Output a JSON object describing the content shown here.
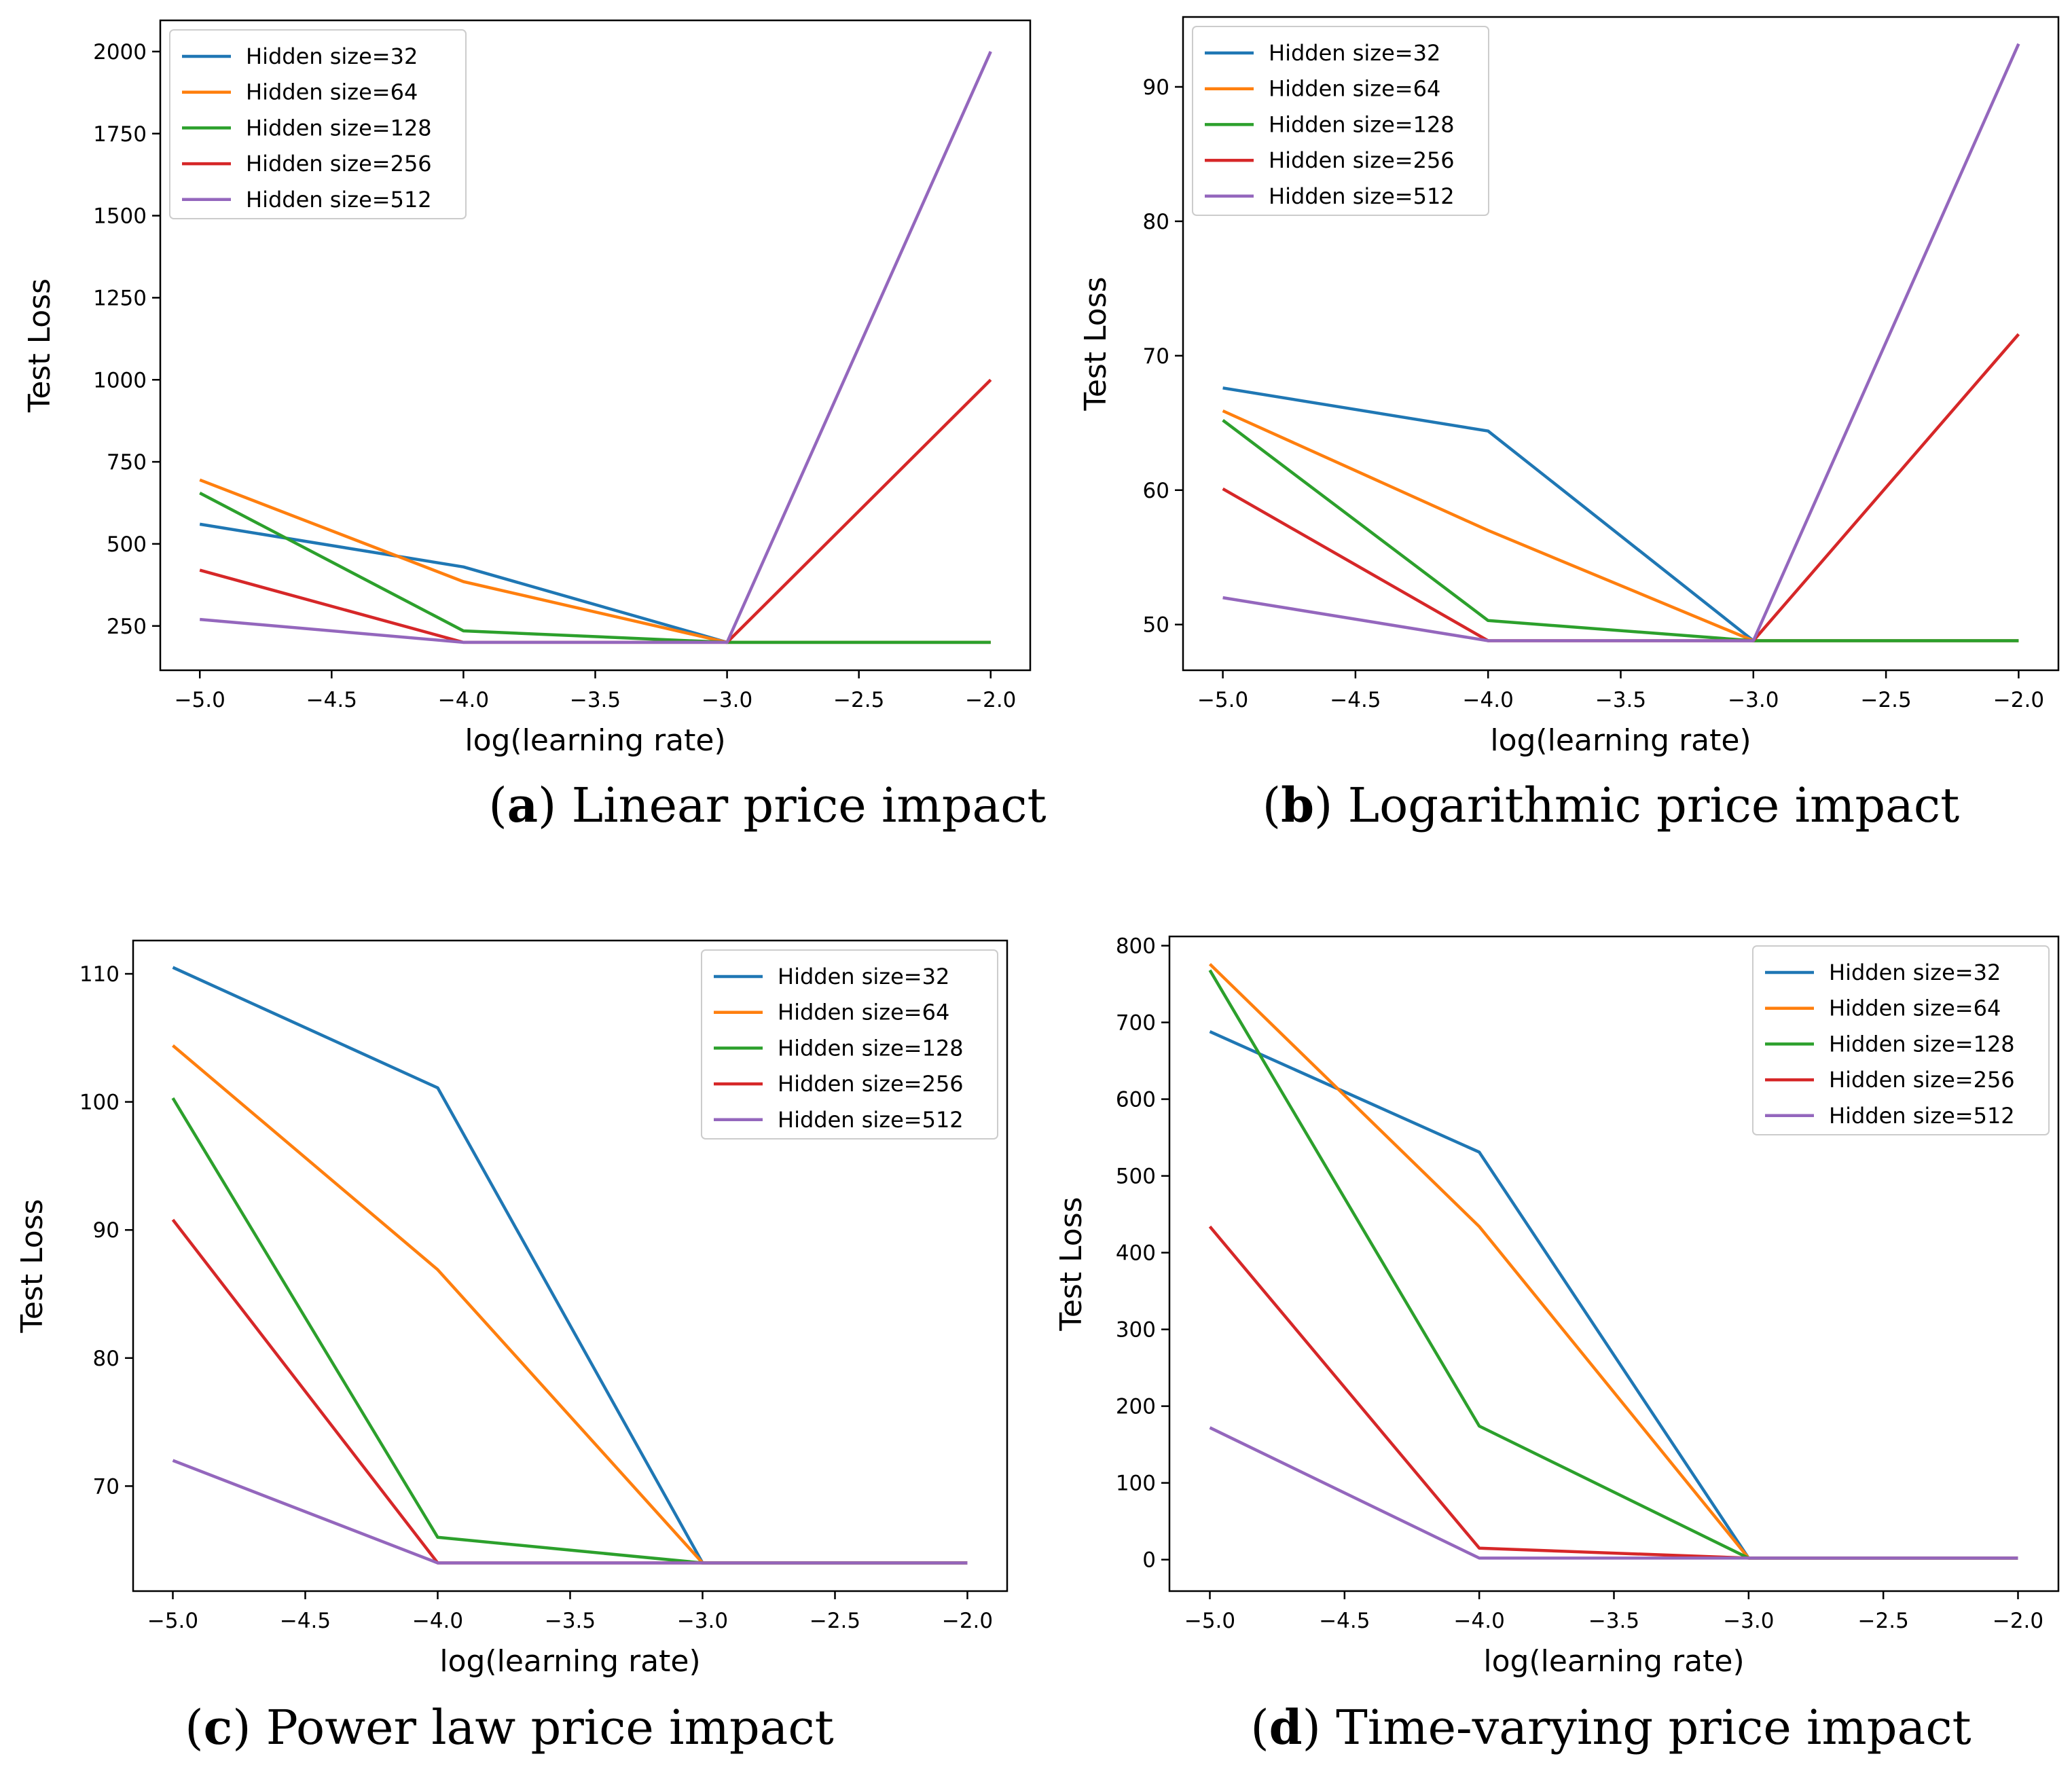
{
  "figure": {
    "x_label": "log(learning rate)",
    "y_label": "Test Loss",
    "series_names": [
      "Hidden size=32",
      "Hidden size=64",
      "Hidden size=128",
      "Hidden size=256",
      "Hidden size=512"
    ],
    "series_colors": [
      "#1f77b4",
      "#ff7f0e",
      "#2ca02c",
      "#d62728",
      "#9467bd"
    ]
  },
  "chart_data": [
    {
      "type": "line",
      "panel_letter": "a",
      "caption_text": "Linear price impact",
      "title": "(a) Linear price impact",
      "xlabel": "log(learning rate)",
      "ylabel": "Test Loss",
      "x": [
        -5.0,
        -4.0,
        -3.0,
        -2.0
      ],
      "xticks": [
        -5.0,
        -4.5,
        -4.0,
        -3.5,
        -3.0,
        -2.5,
        -2.0
      ],
      "xtick_labels": [
        "−5.0",
        "−4.5",
        "−4.0",
        "−3.5",
        "−3.0",
        "−2.5",
        "−2.0"
      ],
      "xlim": [
        -5.15,
        -1.85
      ],
      "yticks": [
        250,
        500,
        750,
        1000,
        1250,
        1500,
        1750,
        2000
      ],
      "ytick_labels": [
        "250",
        "500",
        "750",
        "1000",
        "1250",
        "1500",
        "1750",
        "2000"
      ],
      "ylim": [
        115,
        2095
      ],
      "legend": "top-left",
      "series": [
        {
          "name": "Hidden size=32",
          "values": [
            560,
            430,
            200,
            200
          ]
        },
        {
          "name": "Hidden size=64",
          "values": [
            695,
            385,
            200,
            200
          ]
        },
        {
          "name": "Hidden size=128",
          "values": [
            655,
            235,
            200,
            200
          ]
        },
        {
          "name": "Hidden size=256",
          "values": [
            420,
            200,
            200,
            1000
          ]
        },
        {
          "name": "Hidden size=512",
          "values": [
            270,
            200,
            200,
            2000
          ]
        }
      ]
    },
    {
      "type": "line",
      "panel_letter": "b",
      "caption_text": "Logarithmic price impact",
      "title": "(b) Logarithmic price impact",
      "xlabel": "log(learning rate)",
      "ylabel": "Test Loss",
      "x": [
        -5.0,
        -4.0,
        -3.0,
        -2.0
      ],
      "xticks": [
        -5.0,
        -4.5,
        -4.0,
        -3.5,
        -3.0,
        -2.5,
        -2.0
      ],
      "xtick_labels": [
        "−5.0",
        "−4.5",
        "−4.0",
        "−3.5",
        "−3.0",
        "−2.5",
        "−2.0"
      ],
      "xlim": [
        -5.15,
        -1.85
      ],
      "yticks": [
        50,
        60,
        70,
        80,
        90
      ],
      "ytick_labels": [
        "50",
        "60",
        "70",
        "80",
        "90"
      ],
      "ylim": [
        46.6,
        95.2
      ],
      "legend": "top-left",
      "series": [
        {
          "name": "Hidden size=32",
          "values": [
            67.6,
            64.4,
            48.8,
            48.8
          ]
        },
        {
          "name": "Hidden size=64",
          "values": [
            65.9,
            57.0,
            48.8,
            48.8
          ]
        },
        {
          "name": "Hidden size=128",
          "values": [
            65.2,
            50.3,
            48.8,
            48.8
          ]
        },
        {
          "name": "Hidden size=256",
          "values": [
            60.1,
            48.8,
            48.8,
            71.6
          ]
        },
        {
          "name": "Hidden size=512",
          "values": [
            52.0,
            48.8,
            48.8,
            93.2
          ]
        }
      ]
    },
    {
      "type": "line",
      "panel_letter": "c",
      "caption_text": "Power law price impact",
      "title": "(c) Power law price impact",
      "xlabel": "log(learning rate)",
      "ylabel": "Test Loss",
      "x": [
        -5.0,
        -4.0,
        -3.0,
        -2.0
      ],
      "xticks": [
        -5.0,
        -4.5,
        -4.0,
        -3.5,
        -3.0,
        -2.5,
        -2.0
      ],
      "xtick_labels": [
        "−5.0",
        "−4.5",
        "−4.0",
        "−3.5",
        "−3.0",
        "−2.5",
        "−2.0"
      ],
      "xlim": [
        -5.15,
        -1.85
      ],
      "yticks": [
        70,
        80,
        90,
        100,
        110
      ],
      "ytick_labels": [
        "70",
        "80",
        "90",
        "100",
        "110"
      ],
      "ylim": [
        61.8,
        112.6
      ],
      "legend": "top-right",
      "series": [
        {
          "name": "Hidden size=32",
          "values": [
            110.5,
            101.1,
            64.0,
            64.0
          ]
        },
        {
          "name": "Hidden size=64",
          "values": [
            104.4,
            86.9,
            64.0,
            64.0
          ]
        },
        {
          "name": "Hidden size=128",
          "values": [
            100.3,
            66.0,
            64.0,
            64.0
          ]
        },
        {
          "name": "Hidden size=256",
          "values": [
            90.8,
            64.0,
            64.0,
            64.0
          ]
        },
        {
          "name": "Hidden size=512",
          "values": [
            72.0,
            64.0,
            64.0,
            64.0
          ]
        }
      ]
    },
    {
      "type": "line",
      "panel_letter": "d",
      "caption_text": "Time-varying price impact",
      "title": "(d) Time-varying price impact",
      "xlabel": "log(learning rate)",
      "ylabel": "Test Loss",
      "x": [
        -5.0,
        -4.0,
        -3.0,
        -2.0
      ],
      "xticks": [
        -5.0,
        -4.5,
        -4.0,
        -3.5,
        -3.0,
        -2.5,
        -2.0
      ],
      "xtick_labels": [
        "−5.0",
        "−4.5",
        "−4.0",
        "−3.5",
        "−3.0",
        "−2.5",
        "−2.0"
      ],
      "xlim": [
        -5.15,
        -1.85
      ],
      "yticks": [
        0,
        100,
        200,
        300,
        400,
        500,
        600,
        700,
        800
      ],
      "ytick_labels": [
        "0",
        "100",
        "200",
        "300",
        "400",
        "500",
        "600",
        "700",
        "800"
      ],
      "ylim": [
        -41,
        812
      ],
      "legend": "top-right",
      "series": [
        {
          "name": "Hidden size=32",
          "values": [
            688,
            531,
            2,
            2
          ]
        },
        {
          "name": "Hidden size=64",
          "values": [
            776,
            434,
            2,
            2
          ]
        },
        {
          "name": "Hidden size=128",
          "values": [
            768,
            174,
            2,
            2
          ]
        },
        {
          "name": "Hidden size=256",
          "values": [
            434,
            15,
            2,
            2
          ]
        },
        {
          "name": "Hidden size=512",
          "values": [
            172,
            2,
            2,
            2
          ]
        }
      ]
    }
  ]
}
